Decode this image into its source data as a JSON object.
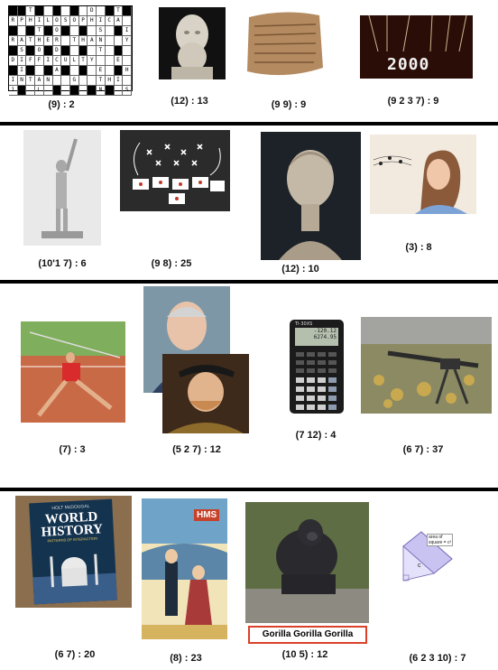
{
  "captions": [
    "(9) : 2",
    "(12) : 13",
    "(9 9) : 9",
    "(9 2 3 7) : 9",
    "(10'1 7) : 6",
    "(9 8) : 25",
    "(12) : 10",
    "(3) : 8",
    "(7) : 3",
    "(5 2 7) : 12",
    "(7 12) : 4",
    "(6 7) : 37",
    "(6 7) : 20",
    "(8) : 23",
    "(10 5) : 12",
    "(6 2 3 10) : 7"
  ],
  "year_display": "2000",
  "calculator": {
    "brand": "TI-30XS",
    "line1": "-120.12",
    "line2": "6274.95"
  },
  "book": {
    "publisher": "HOLT McDOUGAL",
    "title_line1": "WORLD",
    "title_line2": "HISTORY",
    "subtitle": "PATTERNS OF INTERACTION"
  },
  "poster_sign": "HMS",
  "gorilla_label": "Gorilla Gorilla Gorilla",
  "square_label_line1": "area of",
  "square_label_line2": "square = c²",
  "square_side": "c",
  "crossword_rows": [
    "  T      D  T ",
    "RPHILOSOPHICA ",
    "   T O    S  I",
    "RATHER THAN  Y",
    " S O D    T   ",
    "DIFFICULTY  E ",
    " I   A    E  H",
    "INTAN  G  THI ",
    "1  L      N  S"
  ],
  "colors": {
    "rule": "#000000",
    "gorilla_border": "#d9412b",
    "square_fill": "#c9c3f2"
  }
}
